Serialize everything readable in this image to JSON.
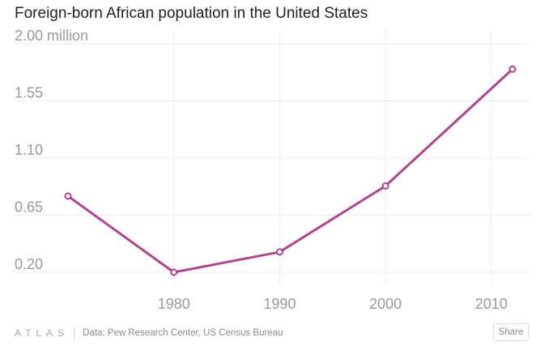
{
  "title": "Foreign-born African population in the United States",
  "footer": {
    "logo": "ATLAS",
    "source": "Data: Pew Research Center, US Census Bureau",
    "share_label": "Share"
  },
  "colors": {
    "line": "#b0448f",
    "grid": "#ececec",
    "tick_text": "#9a9a9a"
  },
  "chart_data": {
    "type": "line",
    "title": "Foreign-born African population in the United States",
    "xlabel": "",
    "ylabel": "",
    "series": [
      {
        "name": "Foreign-born African population (millions)",
        "x": [
          1970,
          1980,
          1990,
          2000,
          2012
        ],
        "values": [
          0.8,
          0.2,
          0.36,
          0.88,
          1.8
        ]
      }
    ],
    "xticks": [
      1980,
      1990,
      2000,
      2010
    ],
    "xtick_labels": [
      "1980",
      "1990",
      "2000",
      "2010"
    ],
    "yticks": [
      2.0,
      1.55,
      1.1,
      0.65,
      0.2
    ],
    "ytick_labels": [
      "2.00 million",
      "1.55",
      "1.10",
      "0.65",
      "0.20"
    ],
    "xlim": [
      1970,
      2012
    ],
    "ylim": [
      0.2,
      2.0
    ],
    "grid": true
  }
}
